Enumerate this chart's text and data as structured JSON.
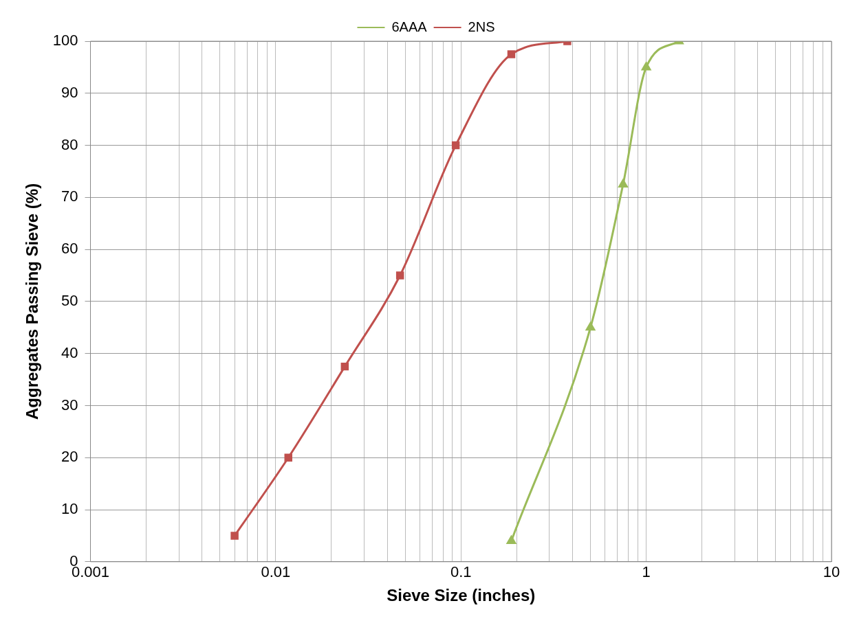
{
  "chart_data": {
    "type": "line",
    "xlabel": "Sieve Size (inches)",
    "ylabel": "Aggregates Passing Sieve (%)",
    "log": "x",
    "xlim": [
      0.001,
      10
    ],
    "xticks": [
      0.001,
      {
        "value": 0.002,
        "label": null
      },
      {
        "value": 0.003,
        "label": null
      },
      {
        "value": 0.004,
        "label": null
      },
      {
        "value": 0.005,
        "label": null
      },
      {
        "value": 0.006,
        "label": null
      },
      {
        "value": 0.007,
        "label": null
      },
      {
        "value": 0.008,
        "label": null
      },
      {
        "value": 0.009,
        "label": null
      },
      0.01,
      {
        "value": 0.02,
        "label": null
      },
      {
        "value": 0.03,
        "label": null
      },
      {
        "value": 0.04,
        "label": null
      },
      {
        "value": 0.05,
        "label": null
      },
      {
        "value": 0.06,
        "label": null
      },
      {
        "value": 0.07,
        "label": null
      },
      {
        "value": 0.08,
        "label": null
      },
      {
        "value": 0.09,
        "label": null
      },
      0.1,
      {
        "value": 0.2,
        "label": null
      },
      {
        "value": 0.3,
        "label": null
      },
      {
        "value": 0.4,
        "label": null
      },
      {
        "value": 0.5,
        "label": null
      },
      {
        "value": 0.6,
        "label": null
      },
      {
        "value": 0.7,
        "label": null
      },
      {
        "value": 0.8,
        "label": null
      },
      {
        "value": 0.9,
        "label": null
      },
      1,
      {
        "value": 2,
        "label": null
      },
      {
        "value": 3,
        "label": null
      },
      {
        "value": 4,
        "label": null
      },
      {
        "value": 5,
        "label": null
      },
      {
        "value": 6,
        "label": null
      },
      {
        "value": 7,
        "label": null
      },
      {
        "value": 8,
        "label": null
      },
      {
        "value": 9,
        "label": null
      },
      10
    ],
    "ylim": [
      0,
      100
    ],
    "yticks": [
      0,
      10,
      20,
      30,
      40,
      50,
      60,
      70,
      80,
      90,
      100
    ],
    "grid": true,
    "legend": "top",
    "series": [
      {
        "name": "6AAA",
        "color": "#9bbb59",
        "marker": "triangle",
        "x": [
          0.187,
          0.5,
          0.75,
          1,
          1.5
        ],
        "values": [
          4,
          45,
          72.5,
          95,
          100
        ]
      },
      {
        "name": "2NS",
        "color": "#c0504d",
        "marker": "square",
        "x": [
          0.006,
          0.0117,
          0.0236,
          0.0469,
          0.0937,
          0.187,
          0.375
        ],
        "values": [
          5,
          20,
          37.5,
          55,
          80,
          97.5,
          100
        ]
      }
    ]
  }
}
